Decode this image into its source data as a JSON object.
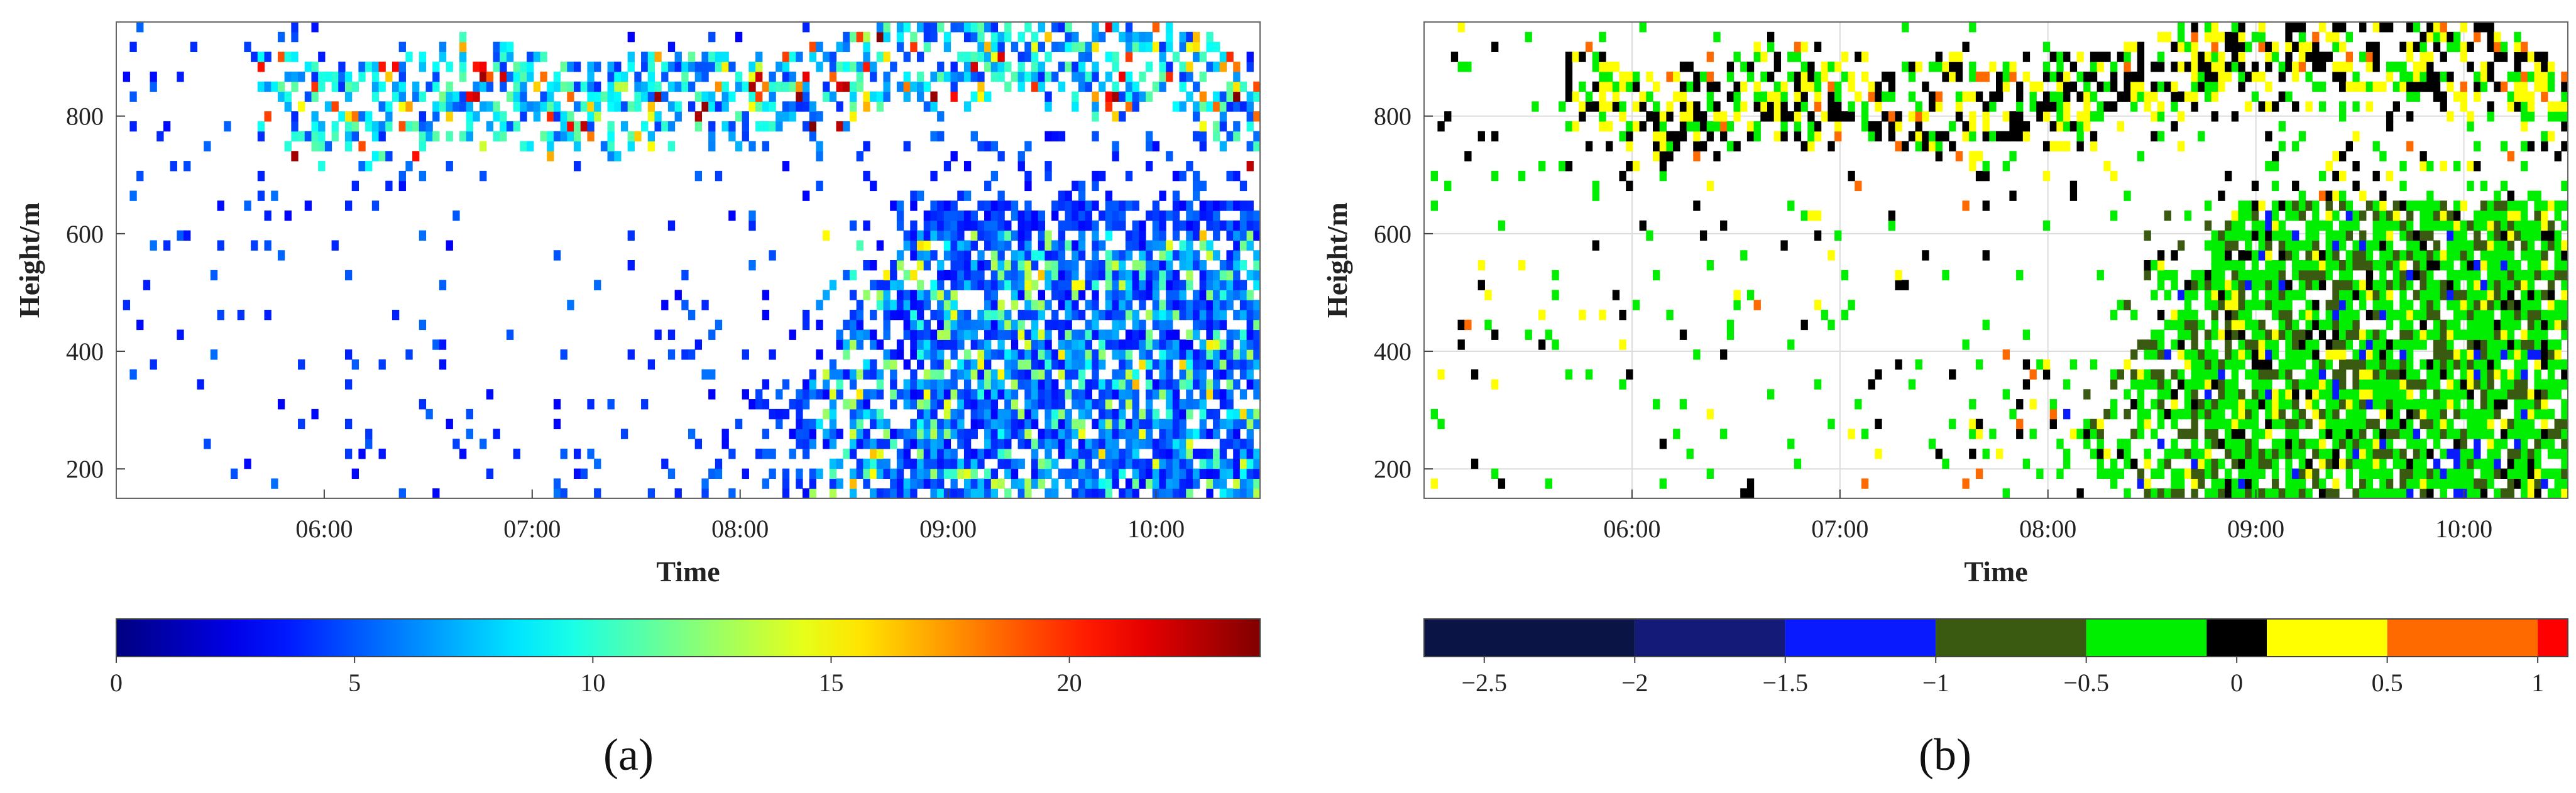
{
  "chart_data": [
    {
      "type": "heatmap",
      "panel_label": "(a)",
      "xlabel": "Time",
      "ylabel": "Height/m",
      "xticks": [
        "06:00",
        "07:00",
        "08:00",
        "09:00",
        "10:00"
      ],
      "xlim": [
        "05:00",
        "10:30"
      ],
      "yticks": [
        200,
        400,
        600,
        800
      ],
      "ylim": [
        150,
        960
      ],
      "grid": false,
      "colorbar": {
        "position": "bottom",
        "colormap": "jet",
        "range": [
          0,
          24
        ],
        "ticks": [
          0,
          5,
          10,
          15,
          20
        ],
        "stops": [
          "#00008f",
          "#0000ff",
          "#00ffff",
          "#ffff00",
          "#ff0000",
          "#800000"
        ]
      },
      "features": [
        {
          "desc": "aerosol-layer band",
          "time_range": [
            "05:45",
            "10:30"
          ],
          "height_range": [
            760,
            960
          ],
          "level_range": [
            2,
            22
          ]
        },
        {
          "desc": "convective region",
          "time_range": [
            "08:20",
            "10:30"
          ],
          "height_range": [
            150,
            600
          ],
          "level_range": [
            1,
            13
          ]
        },
        {
          "desc": "sparse background",
          "time_range": [
            "05:00",
            "08:30"
          ],
          "height_range": [
            150,
            760
          ],
          "level_range": [
            1,
            4
          ]
        }
      ]
    },
    {
      "type": "heatmap",
      "panel_label": "(b)",
      "xlabel": "Time",
      "ylabel": "Height/m",
      "xticks": [
        "06:00",
        "07:00",
        "08:00",
        "09:00",
        "10:00"
      ],
      "xlim": [
        "05:00",
        "10:30"
      ],
      "yticks": [
        200,
        400,
        600,
        800
      ],
      "ylim": [
        150,
        960
      ],
      "grid": true,
      "colorbar": {
        "position": "bottom",
        "type": "discrete",
        "range": [
          -2.7,
          1.1
        ],
        "tick_labels": [
          "−2.5",
          "−2",
          "−1.5",
          "−1",
          "−0.5",
          "0",
          "0.5",
          "1"
        ],
        "tick_values": [
          -2.5,
          -2,
          -1.5,
          -1,
          -0.5,
          0,
          0.5,
          1
        ],
        "bins": [
          {
            "from": -2.7,
            "to": -2.0,
            "color": "#0a1445"
          },
          {
            "from": -2.0,
            "to": -1.5,
            "color": "#141a78"
          },
          {
            "from": -1.5,
            "to": -1.0,
            "color": "#0a1aff"
          },
          {
            "from": -1.0,
            "to": -0.5,
            "color": "#3a5a12"
          },
          {
            "from": -0.5,
            "to": -0.1,
            "color": "#00ee00"
          },
          {
            "from": -0.1,
            "to": 0.1,
            "color": "#000000"
          },
          {
            "from": 0.1,
            "to": 0.5,
            "color": "#ffff00"
          },
          {
            "from": 0.5,
            "to": 1.0,
            "color": "#ff6a00"
          },
          {
            "from": 1.0,
            "to": 1.1,
            "color": "#ff0000"
          }
        ]
      }
    }
  ]
}
